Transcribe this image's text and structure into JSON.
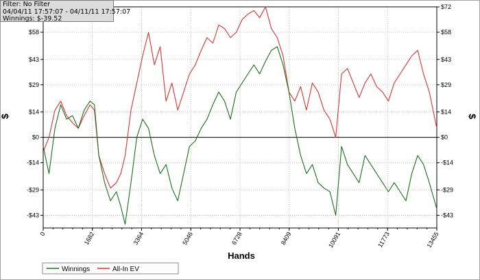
{
  "info": {
    "filter": "Filter: No Filter",
    "date_range": "04/04/11 17:57:07 - 04/11/11 17:57:07",
    "winnings": "Winnings: $-39.52"
  },
  "colors": {
    "winnings": "#1a6e1a",
    "all_in_ev": "#e03030",
    "zero_line": "#000000"
  },
  "chart_data": {
    "type": "line",
    "title": "",
    "xlabel": "Hands",
    "ylabel": "$",
    "xlim": [
      0,
      13455
    ],
    "ylim": [
      -50,
      72
    ],
    "x_ticks": [
      0,
      1682,
      3364,
      5046,
      6728,
      8409,
      10091,
      11773,
      13455
    ],
    "y_ticks": [
      72,
      58,
      43,
      29,
      14,
      0,
      -14,
      -29,
      -43
    ],
    "y_tick_labels": [
      "$72",
      "$58",
      "$43",
      "$29",
      "$14",
      "$0",
      "-$14",
      "-$29",
      "-$43"
    ],
    "grid": true,
    "legend": "bottom-left",
    "series": [
      {
        "name": "Winnings",
        "x": [
          0,
          200,
          400,
          600,
          800,
          1000,
          1200,
          1400,
          1600,
          1750,
          1900,
          2100,
          2300,
          2500,
          2650,
          2800,
          3000,
          3200,
          3400,
          3600,
          3800,
          4000,
          4200,
          4400,
          4600,
          4800,
          5000,
          5200,
          5400,
          5600,
          5800,
          6000,
          6200,
          6400,
          6600,
          6800,
          7000,
          7200,
          7400,
          7600,
          7800,
          8000,
          8200,
          8400,
          8600,
          8800,
          9000,
          9200,
          9400,
          9600,
          9800,
          10000,
          10200,
          10400,
          10600,
          10800,
          11000,
          11200,
          11400,
          11600,
          11800,
          12000,
          12200,
          12400,
          12600,
          12800,
          13000,
          13200,
          13455
        ],
        "values": [
          -5,
          -20,
          5,
          18,
          10,
          12,
          5,
          15,
          20,
          18,
          -10,
          -25,
          -35,
          -30,
          -38,
          -48,
          -25,
          0,
          10,
          5,
          -10,
          -20,
          -15,
          -28,
          -35,
          -20,
          -5,
          -2,
          5,
          10,
          18,
          25,
          20,
          10,
          25,
          30,
          35,
          40,
          35,
          42,
          48,
          50,
          40,
          25,
          5,
          -10,
          -20,
          -15,
          -25,
          -28,
          -30,
          -43,
          -5,
          -15,
          -20,
          -25,
          -10,
          -15,
          -20,
          -25,
          -30,
          -25,
          -30,
          -35,
          -20,
          -10,
          -15,
          -25,
          -39.52
        ]
      },
      {
        "name": "All-In EV",
        "x": [
          0,
          200,
          400,
          600,
          800,
          1000,
          1200,
          1400,
          1600,
          1750,
          1900,
          2100,
          2300,
          2500,
          2650,
          2800,
          3000,
          3200,
          3400,
          3600,
          3800,
          4000,
          4200,
          4400,
          4600,
          4800,
          5000,
          5200,
          5400,
          5600,
          5800,
          6000,
          6200,
          6400,
          6600,
          6800,
          7000,
          7200,
          7400,
          7600,
          7800,
          8000,
          8200,
          8400,
          8600,
          8800,
          9000,
          9200,
          9400,
          9600,
          9800,
          10000,
          10200,
          10400,
          10600,
          10800,
          11000,
          11200,
          11400,
          11600,
          11800,
          12000,
          12200,
          12400,
          12600,
          12800,
          13000,
          13200,
          13455
        ],
        "values": [
          -8,
          0,
          15,
          20,
          12,
          8,
          5,
          12,
          18,
          15,
          -10,
          -20,
          -28,
          -25,
          -20,
          -10,
          15,
          30,
          45,
          58,
          40,
          50,
          20,
          30,
          15,
          25,
          35,
          40,
          48,
          55,
          52,
          62,
          60,
          55,
          58,
          65,
          68,
          70,
          66,
          72,
          60,
          55,
          45,
          25,
          20,
          28,
          15,
          30,
          25,
          15,
          10,
          0,
          35,
          38,
          30,
          22,
          30,
          35,
          28,
          25,
          20,
          30,
          35,
          40,
          45,
          48,
          35,
          25,
          5
        ]
      }
    ]
  }
}
